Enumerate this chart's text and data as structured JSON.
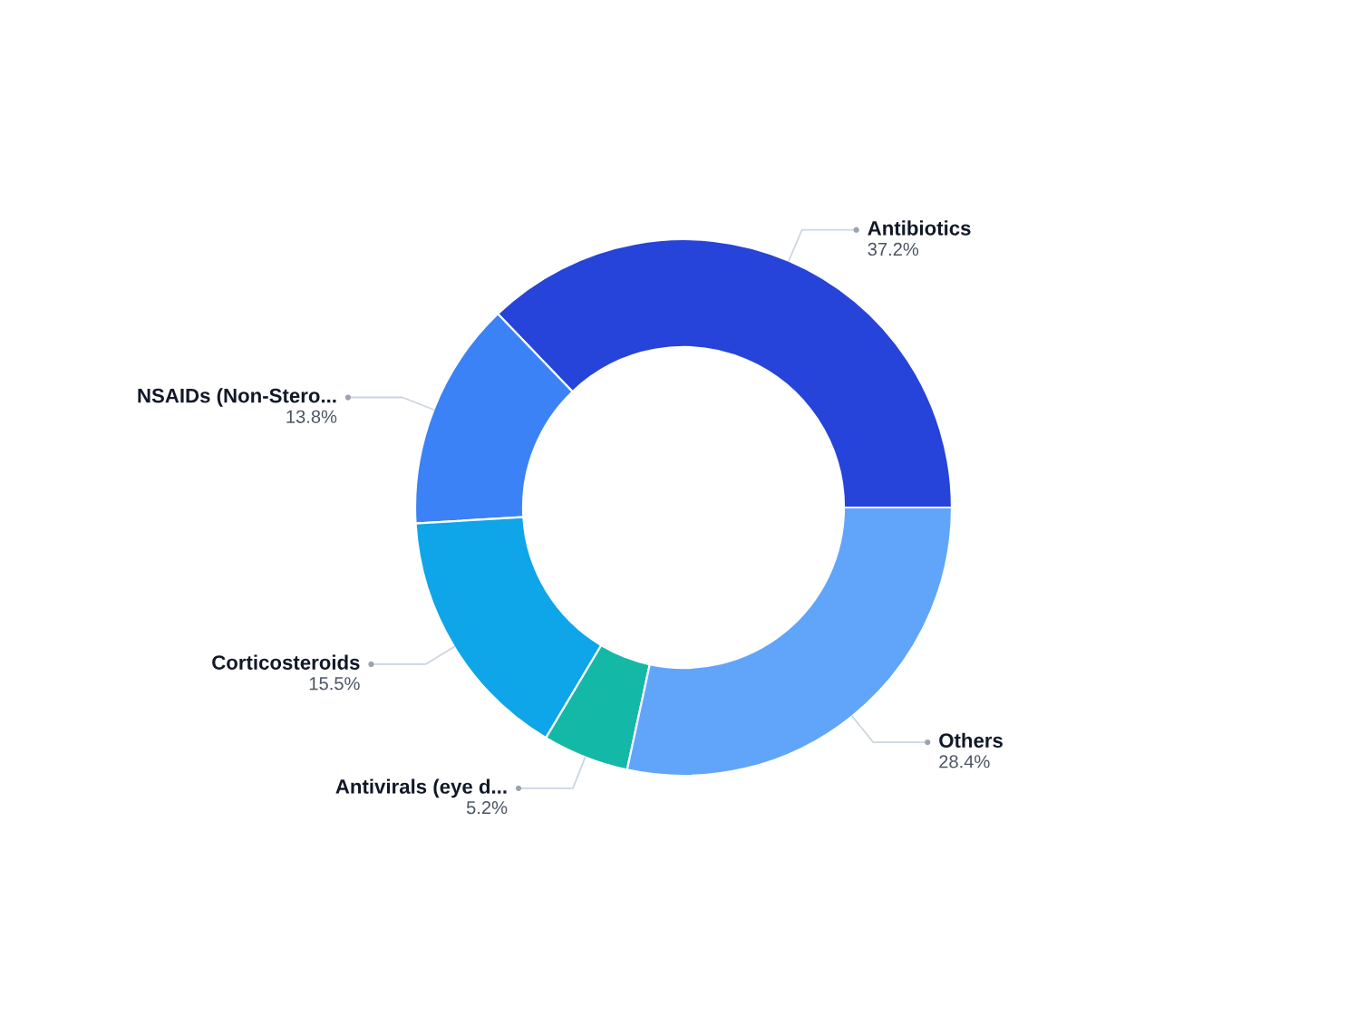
{
  "chart_data": {
    "type": "donut",
    "categories": [
      "Antibiotics",
      "NSAIDs (Non-Stero...",
      "Corticosteroids",
      "Antivirals (eye d...",
      "Others"
    ],
    "values": [
      37.2,
      13.8,
      15.5,
      5.2,
      28.4
    ],
    "colors": [
      "#2644d9",
      "#3b82f6",
      "#0ea5e9",
      "#14b8a6",
      "#60a5fa"
    ],
    "value_labels": [
      "37.2%",
      "13.8%",
      "15.5%",
      "5.2%",
      "28.4%"
    ]
  }
}
